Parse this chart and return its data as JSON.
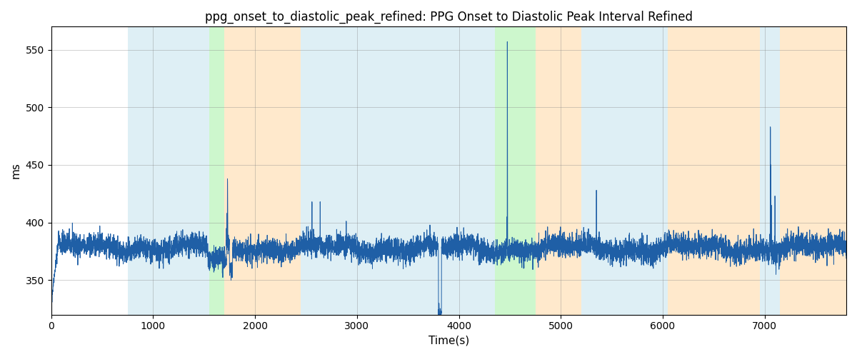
{
  "title": "ppg_onset_to_diastolic_peak_refined: PPG Onset to Diastolic Peak Interval Refined",
  "xlabel": "Time(s)",
  "ylabel": "ms",
  "xlim": [
    0,
    7800
  ],
  "ylim": [
    320,
    570
  ],
  "line_color": "#1f5fa6",
  "line_width": 0.7,
  "bg_bands": [
    {
      "xmin": 750,
      "xmax": 1550,
      "color": "#add8e6",
      "alpha": 0.4
    },
    {
      "xmin": 1550,
      "xmax": 1700,
      "color": "#90ee90",
      "alpha": 0.45
    },
    {
      "xmin": 1700,
      "xmax": 2450,
      "color": "#ffd59a",
      "alpha": 0.5
    },
    {
      "xmin": 2450,
      "xmax": 4350,
      "color": "#add8e6",
      "alpha": 0.4
    },
    {
      "xmin": 4350,
      "xmax": 4750,
      "color": "#90ee90",
      "alpha": 0.45
    },
    {
      "xmin": 4750,
      "xmax": 5200,
      "color": "#ffd59a",
      "alpha": 0.5
    },
    {
      "xmin": 5200,
      "xmax": 6050,
      "color": "#add8e6",
      "alpha": 0.4
    },
    {
      "xmin": 6050,
      "xmax": 6950,
      "color": "#ffd59a",
      "alpha": 0.5
    },
    {
      "xmin": 6950,
      "xmax": 7150,
      "color": "#add8e6",
      "alpha": 0.4
    },
    {
      "xmin": 7150,
      "xmax": 7800,
      "color": "#ffd59a",
      "alpha": 0.5
    }
  ],
  "seed": 42,
  "n_points": 7800,
  "base_value": 378,
  "noise_std": 5,
  "title_fontsize": 12,
  "yticks": [
    350,
    400,
    450,
    500,
    550
  ],
  "xticks": [
    0,
    1000,
    2000,
    3000,
    4000,
    5000,
    6000,
    7000
  ]
}
